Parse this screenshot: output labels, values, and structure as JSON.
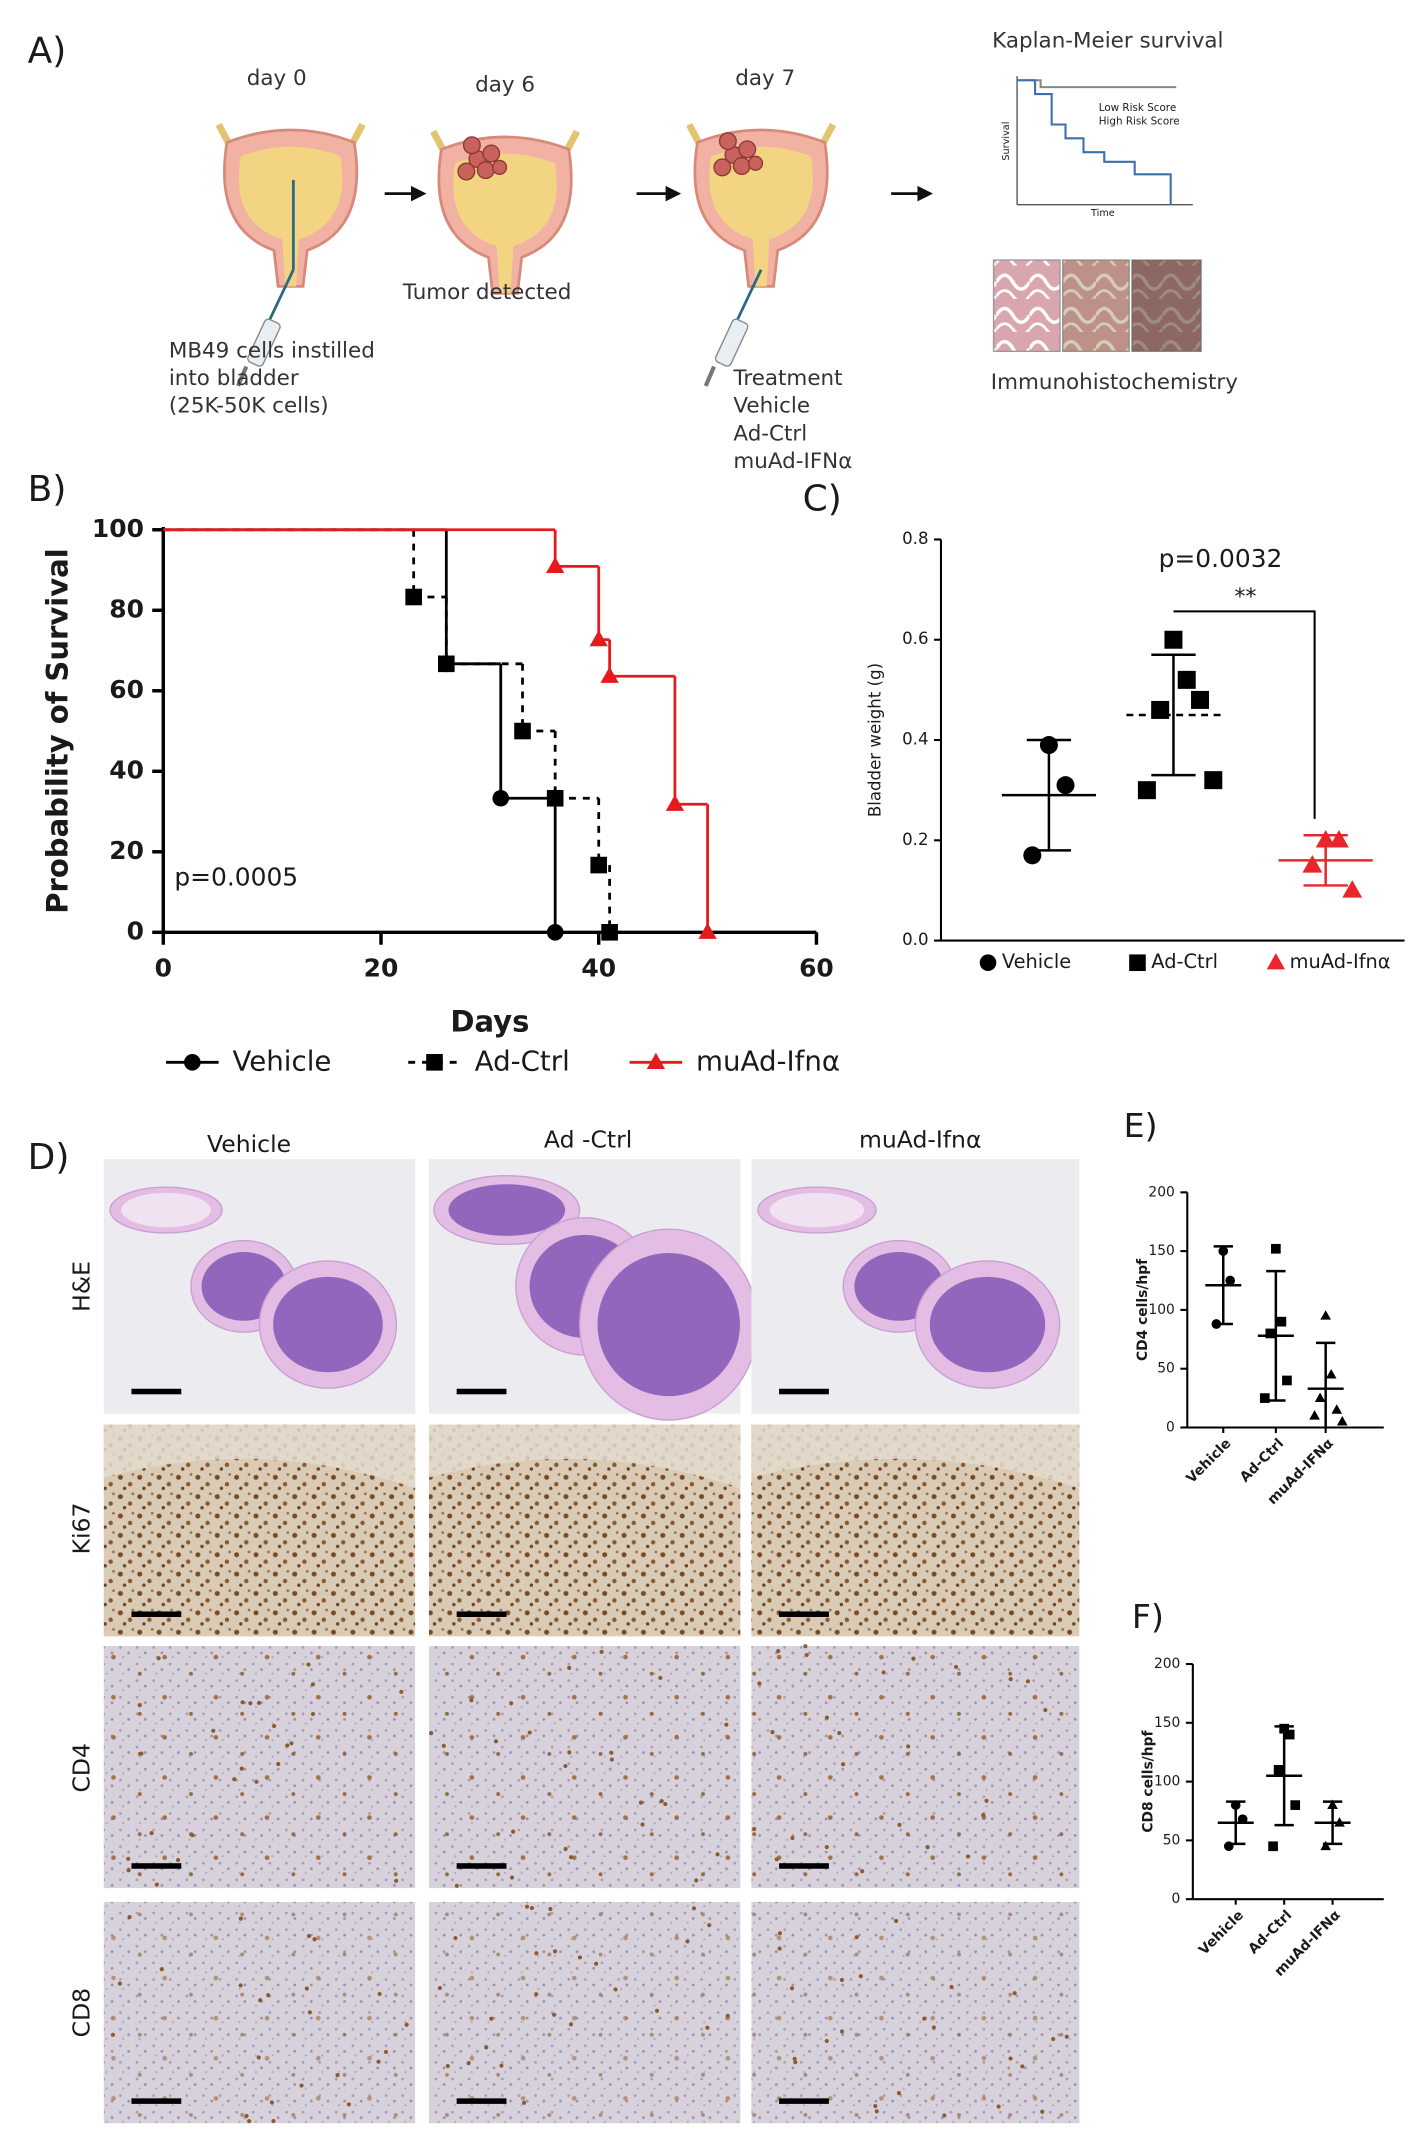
{
  "panel_a": {
    "label": "A)",
    "steps": [
      {
        "day": "day 0",
        "caption": [
          "MB49 cells instilled",
          "into bladder",
          "(25K-50K cells)"
        ]
      },
      {
        "day": "day 6",
        "caption": [
          "Tumor detected"
        ]
      },
      {
        "day": "day 7",
        "caption": [
          "Treatment",
          "Vehicle",
          "Ad-Ctrl",
          "muAd-IFNα"
        ]
      }
    ],
    "outcomes": {
      "survival_title": "Kaplan-Meier survival",
      "legend": [
        "Low Risk Score",
        "High Risk Score"
      ],
      "y_label": "Survival",
      "x_label": "Time",
      "ihc": "Immunohistochemistry"
    }
  },
  "panel_d": {
    "label": "D)",
    "columns": [
      "Vehicle",
      "Ad -Ctrl",
      "muAd-Ifnα"
    ],
    "rows": [
      "H&E",
      "Ki67",
      "CD4",
      "CD8"
    ]
  },
  "chart_data": [
    {
      "type": "line",
      "panel_label": "B)",
      "x_label": "Days",
      "y_label": "Probability of Survival",
      "annotation": "p=0.0005",
      "xlim": [
        0,
        60
      ],
      "xticks": [
        0,
        20,
        40,
        60
      ],
      "ylim": [
        0,
        100
      ],
      "yticks": [
        0,
        20,
        40,
        60,
        80,
        100
      ],
      "series": [
        {
          "name": "Vehicle",
          "color": "#000000",
          "dashed": false,
          "marker": "circle",
          "x": [
            0,
            26,
            31,
            36
          ],
          "values": [
            100,
            66.7,
            33.3,
            0
          ]
        },
        {
          "name": "Ad-Ctrl",
          "color": "#000000",
          "dashed": true,
          "marker": "square",
          "x": [
            0,
            23,
            26,
            33,
            36,
            40,
            41
          ],
          "values": [
            100,
            83.3,
            66.7,
            50,
            33.3,
            16.7,
            0
          ]
        },
        {
          "name": "muAd-Ifnα",
          "color": "#e41a1c",
          "dashed": false,
          "marker": "triangle",
          "x": [
            0,
            36,
            40,
            41,
            47,
            50
          ],
          "values": [
            100,
            90.9,
            72.7,
            63.6,
            31.8,
            0
          ]
        }
      ]
    },
    {
      "type": "dot",
      "panel_label": "C)",
      "y_label": "Bladder weight (g)",
      "annotations": [
        "p=0.0032",
        "**"
      ],
      "ylim": [
        0,
        0.8
      ],
      "yticks": [
        {
          "value": 0,
          "label": "0.0"
        },
        0.2,
        0.4,
        0.6,
        0.8
      ],
      "groups": [
        {
          "name": "Vehicle",
          "color": "#000000",
          "marker": "circle",
          "values": [
            0.39,
            0.31,
            0.17
          ],
          "mean": 0.29,
          "sd": 0.11
        },
        {
          "name": "Ad-Ctrl",
          "color": "#000000",
          "marker": "square",
          "values": [
            0.6,
            0.52,
            0.46,
            0.48,
            0.3,
            0.32
          ],
          "mean": 0.45,
          "sd": 0.12
        },
        {
          "name": "muAd-Ifnα",
          "color": "#e8262b",
          "marker": "triangle",
          "values": [
            0.2,
            0.2,
            0.15,
            0.1
          ],
          "mean": 0.16,
          "sd": 0.05
        }
      ]
    },
    {
      "type": "dot",
      "panel_label": "E)",
      "y_label": "CD4 cells/hpf",
      "ylim": [
        0,
        200
      ],
      "yticks": [
        0,
        50,
        100,
        150,
        200
      ],
      "groups": [
        {
          "name": "Vehicle",
          "color": "#000000",
          "marker": "circle",
          "values": [
            150,
            125,
            88
          ],
          "mean": 121,
          "sd": 33
        },
        {
          "name": "Ad-Ctrl",
          "color": "#000000",
          "marker": "square",
          "values": [
            152,
            90,
            80,
            40,
            25
          ],
          "mean": 78,
          "sd": 55
        },
        {
          "name": "muAd-IFNα",
          "color": "#000000",
          "marker": "triangle",
          "values": [
            95,
            45,
            25,
            15,
            10,
            5
          ],
          "mean": 33,
          "sd": 39
        }
      ]
    },
    {
      "type": "dot",
      "panel_label": "F)",
      "y_label": "CD8 cells/hpf",
      "ylim": [
        0,
        200
      ],
      "yticks": [
        0,
        50,
        100,
        150,
        200
      ],
      "groups": [
        {
          "name": "Vehicle",
          "color": "#000000",
          "marker": "circle",
          "values": [
            80,
            68,
            45
          ],
          "mean": 65,
          "sd": 18
        },
        {
          "name": "Ad-Ctrl",
          "color": "#000000",
          "marker": "square",
          "values": [
            145,
            140,
            110,
            80,
            45
          ],
          "mean": 105,
          "sd": 42
        },
        {
          "name": "muAd-IFNα",
          "color": "#000000",
          "marker": "triangle",
          "values": [
            80,
            65,
            45
          ],
          "mean": 65,
          "sd": 18
        }
      ]
    }
  ]
}
